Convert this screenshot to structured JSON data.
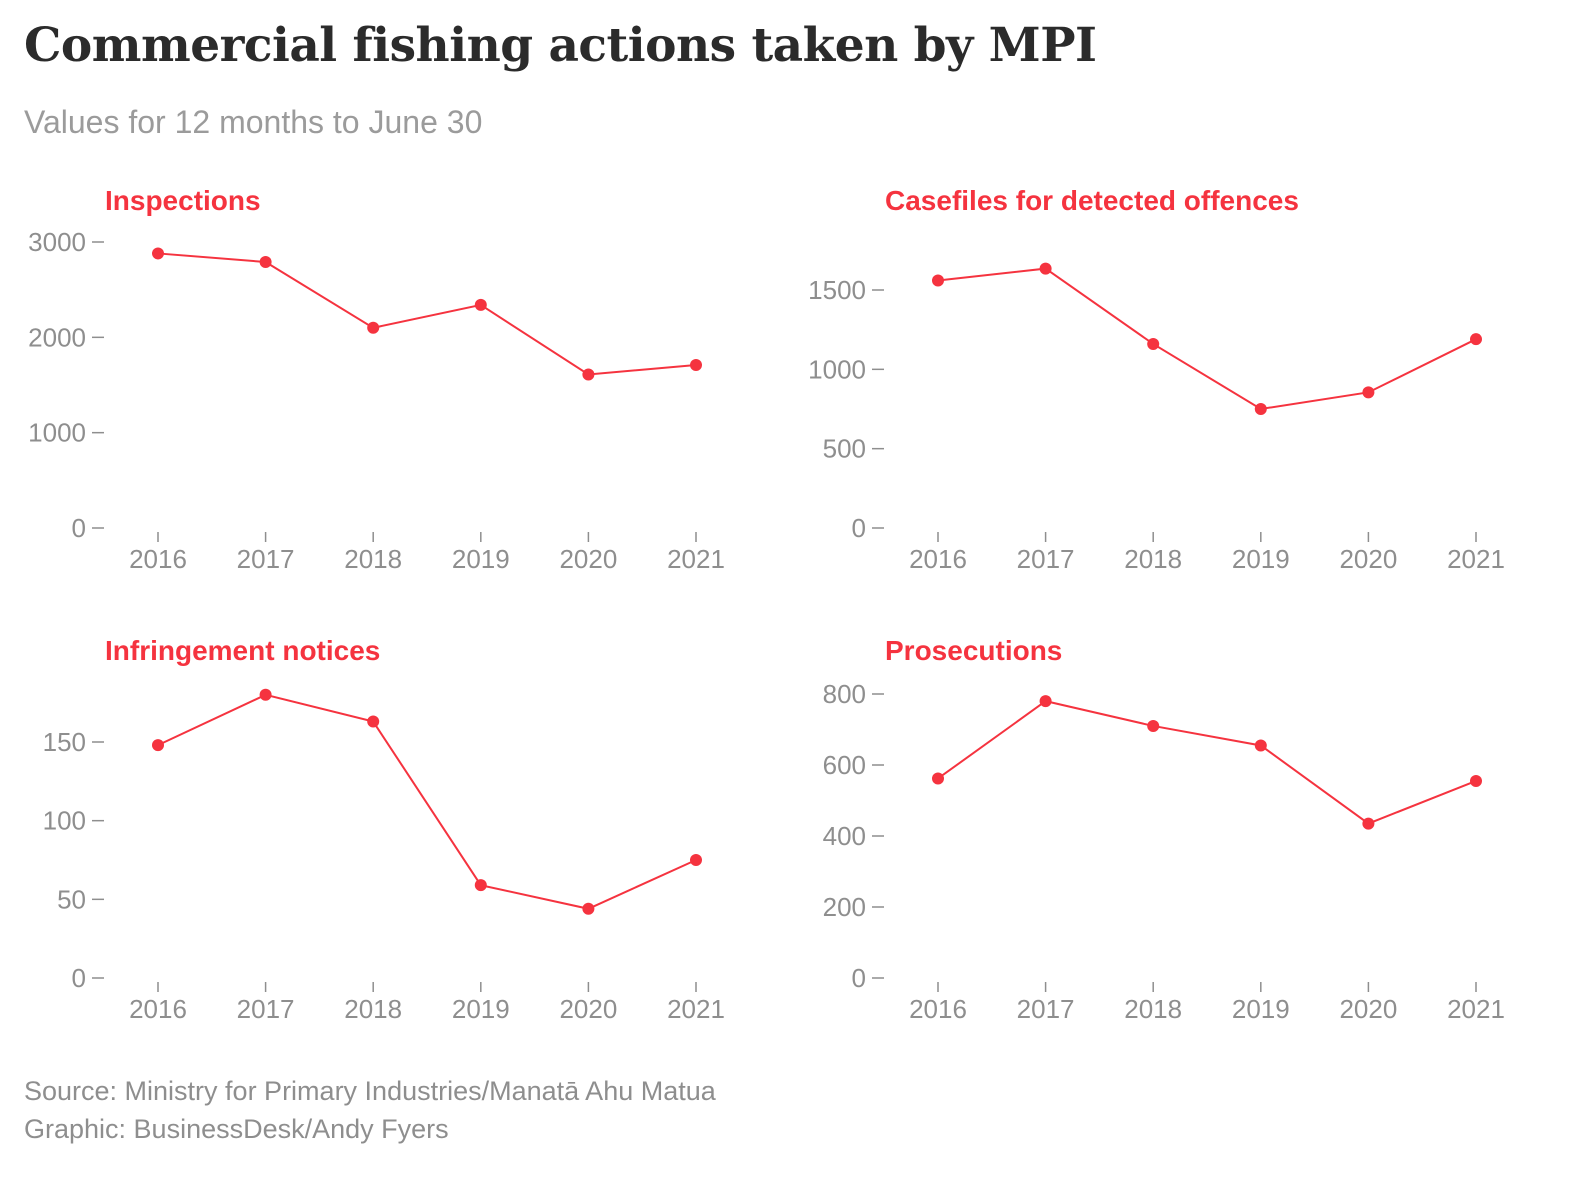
{
  "title": "Commercial fishing actions taken by MPI",
  "subtitle": "Values for 12 months to June 30",
  "colors": {
    "line": "#f5333f",
    "axis": "#8e8e8e",
    "title": "#2b2b2b"
  },
  "footer": {
    "source": "Source: Ministry for Primary Industries/Manatā Ahu Matua",
    "graphic": "Graphic: BusinessDesk/Andy Fyers"
  },
  "chart_data": [
    {
      "type": "line",
      "title": "Inspections",
      "x": [
        "2016",
        "2017",
        "2018",
        "2019",
        "2020",
        "2021"
      ],
      "values": [
        2880,
        2790,
        2100,
        2340,
        1610,
        1710
      ],
      "yticks": [
        0,
        1000,
        2000,
        3000
      ],
      "ylim": [
        0,
        3000
      ]
    },
    {
      "type": "line",
      "title": "Casefiles for detected offences",
      "x": [
        "2016",
        "2017",
        "2018",
        "2019",
        "2020",
        "2021"
      ],
      "values": [
        1560,
        1635,
        1160,
        750,
        855,
        1190
      ],
      "yticks": [
        0,
        500,
        1000,
        1500
      ],
      "ylim": [
        0,
        1500
      ]
    },
    {
      "type": "line",
      "title": "Infringement notices",
      "x": [
        "2016",
        "2017",
        "2018",
        "2019",
        "2020",
        "2021"
      ],
      "values": [
        148,
        180,
        163,
        59,
        44,
        75
      ],
      "yticks": [
        0,
        50,
        100,
        150
      ],
      "ylim": [
        0,
        150
      ]
    },
    {
      "type": "line",
      "title": "Prosecutions",
      "x": [
        "2016",
        "2017",
        "2018",
        "2019",
        "2020",
        "2021"
      ],
      "values": [
        562,
        780,
        710,
        655,
        435,
        555
      ],
      "yticks": [
        0,
        200,
        400,
        600,
        800
      ],
      "ylim": [
        0,
        800
      ]
    }
  ]
}
